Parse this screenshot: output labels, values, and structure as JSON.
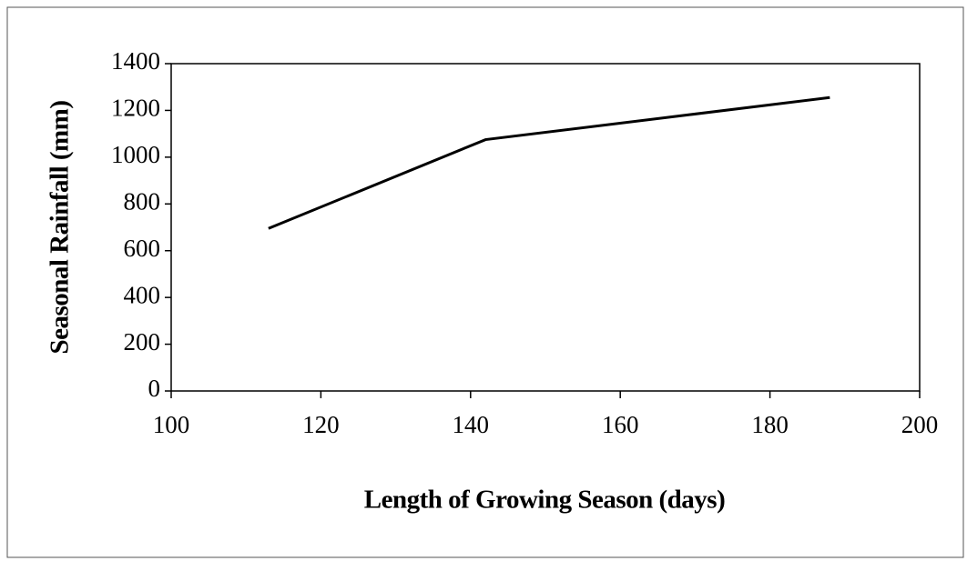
{
  "chart_data": {
    "type": "line",
    "x": [
      113,
      142,
      188
    ],
    "series": [
      {
        "color": "#000000",
        "values": [
          695,
          1075,
          1255
        ]
      }
    ],
    "xlabel": "Length of Growing  Season (days)",
    "ylabel": "Seasonal Rainfall (mm)",
    "xlim": [
      100,
      200
    ],
    "xticks": [
      100,
      120,
      140,
      160,
      180,
      200
    ],
    "ylim": [
      0,
      1400
    ],
    "yticks": [
      0,
      200,
      400,
      600,
      800,
      1000,
      1200,
      1400
    ]
  }
}
